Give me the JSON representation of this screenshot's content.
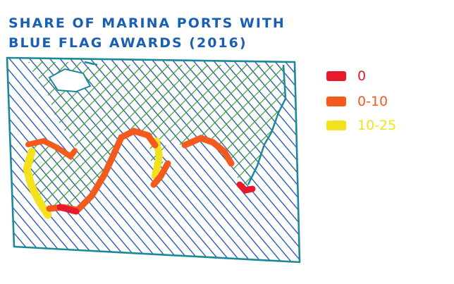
{
  "title": {
    "line1": "SHARE OF MARINA PORTS WITH",
    "line2": "BLUE FLAG AWARDS (2016)"
  },
  "legend": [
    {
      "label": "0",
      "color": "#e8192c"
    },
    {
      "label": "0-10",
      "color": "#f25a1e"
    },
    {
      "label": "10-25",
      "color": "#f2e21e"
    }
  ],
  "colors": {
    "ink": "#1a5fb4",
    "frame": "#1a8a9a",
    "sea_hatch": "#1e4fa8",
    "land_hatch": "#3aa12c"
  }
}
